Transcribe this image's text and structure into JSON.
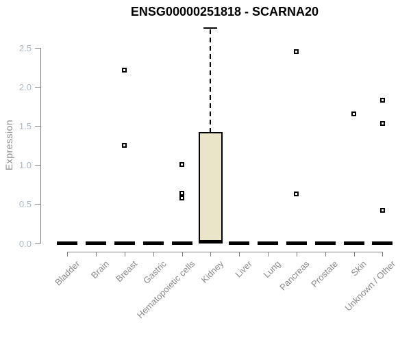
{
  "chart_data": {
    "type": "boxplot",
    "title": "ENSG00000251818 - SCARNA20",
    "ylabel": "Expression",
    "xlabel": "",
    "ylim": [
      0,
      2.75
    ],
    "yticks": [
      0.0,
      0.5,
      1.0,
      1.5,
      2.0,
      2.5
    ],
    "grid": false,
    "legend": "none",
    "categories": [
      "Bladder",
      "Brain",
      "Breast",
      "Gastric",
      "Hematopoietic cells",
      "Kidney",
      "Liver",
      "Lung",
      "Pancreas",
      "Prostate",
      "Skin",
      "Unknown / Other"
    ],
    "series": [
      {
        "category": "Bladder",
        "median": 0.0,
        "q1": 0.0,
        "q3": 0.0,
        "whisker_low": 0.0,
        "whisker_high": 0.0,
        "outliers": []
      },
      {
        "category": "Brain",
        "median": 0.0,
        "q1": 0.0,
        "q3": 0.0,
        "whisker_low": 0.0,
        "whisker_high": 0.0,
        "outliers": []
      },
      {
        "category": "Breast",
        "median": 0.0,
        "q1": 0.0,
        "q3": 0.0,
        "whisker_low": 0.0,
        "whisker_high": 0.0,
        "outliers": [
          2.21,
          1.25
        ]
      },
      {
        "category": "Gastric",
        "median": 0.0,
        "q1": 0.0,
        "q3": 0.0,
        "whisker_low": 0.0,
        "whisker_high": 0.0,
        "outliers": []
      },
      {
        "category": "Hematopoietic cells",
        "median": 0.0,
        "q1": 0.0,
        "q3": 0.0,
        "whisker_low": 0.0,
        "whisker_high": 0.0,
        "outliers": [
          1.01,
          0.64,
          0.58
        ]
      },
      {
        "category": "Kidney",
        "median": 0.02,
        "q1": 0.02,
        "q3": 1.42,
        "whisker_low": 0.0,
        "whisker_high": 2.75,
        "outliers": []
      },
      {
        "category": "Liver",
        "median": 0.0,
        "q1": 0.0,
        "q3": 0.0,
        "whisker_low": 0.0,
        "whisker_high": 0.0,
        "outliers": []
      },
      {
        "category": "Lung",
        "median": 0.0,
        "q1": 0.0,
        "q3": 0.0,
        "whisker_low": 0.0,
        "whisker_high": 0.0,
        "outliers": []
      },
      {
        "category": "Pancreas",
        "median": 0.0,
        "q1": 0.0,
        "q3": 0.0,
        "whisker_low": 0.0,
        "whisker_high": 0.0,
        "outliers": [
          2.45,
          0.63
        ]
      },
      {
        "category": "Prostate",
        "median": 0.0,
        "q1": 0.0,
        "q3": 0.0,
        "whisker_low": 0.0,
        "whisker_high": 0.0,
        "outliers": []
      },
      {
        "category": "Skin",
        "median": 0.0,
        "q1": 0.0,
        "q3": 0.0,
        "whisker_low": 0.0,
        "whisker_high": 0.0,
        "outliers": [
          1.65
        ]
      },
      {
        "category": "Unknown / Other",
        "median": 0.0,
        "q1": 0.0,
        "q3": 0.0,
        "whisker_low": 0.0,
        "whisker_high": 0.0,
        "outliers": [
          1.83,
          1.53,
          0.42
        ]
      }
    ],
    "colors": {
      "box_fill": "#EAE4C8",
      "box_border": "#000000",
      "median": "#000000",
      "axis_line": "#808080",
      "y_tick_label": "#AAB8C4",
      "x_tick_label": "#8A8A8A",
      "title": "#000000",
      "background": "#FFFFFF"
    }
  }
}
